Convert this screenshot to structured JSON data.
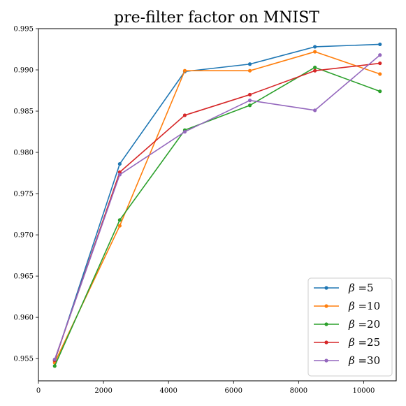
{
  "chart_data": {
    "type": "line",
    "title": "pre-filter factor on MNIST",
    "xlabel": "",
    "ylabel": "",
    "x": [
      500,
      2500,
      4500,
      6500,
      8500,
      10500
    ],
    "xlim": [
      0,
      11000
    ],
    "ylim": [
      0.9523,
      0.995
    ],
    "xticks": [
      0,
      2000,
      4000,
      6000,
      8000,
      10000
    ],
    "xtick_labels": [
      "0",
      "2000",
      "4000",
      "6000",
      "8000",
      "10000"
    ],
    "yticks": [
      0.955,
      0.96,
      0.965,
      0.97,
      0.975,
      0.98,
      0.985,
      0.99,
      0.995
    ],
    "ytick_labels": [
      "0.955",
      "0.960",
      "0.965",
      "0.970",
      "0.975",
      "0.980",
      "0.985",
      "0.990",
      "0.995"
    ],
    "grid": false,
    "legend_position": "bottom-right",
    "series": [
      {
        "name": "β =5",
        "symbol": "β",
        "label": "=5",
        "color": "#1f77b4",
        "values": [
          0.9547,
          0.9786,
          0.9898,
          0.9907,
          0.9928,
          0.9931
        ]
      },
      {
        "name": "β =10",
        "symbol": "β",
        "label": "=10",
        "color": "#ff7f0e",
        "values": [
          0.9545,
          0.9711,
          0.9899,
          0.9899,
          0.9922,
          0.9895
        ]
      },
      {
        "name": "β =20",
        "symbol": "β",
        "label": "=20",
        "color": "#2ca02c",
        "values": [
          0.9541,
          0.9718,
          0.9827,
          0.9857,
          0.9903,
          0.9874
        ]
      },
      {
        "name": "β =25",
        "symbol": "β",
        "label": "=25",
        "color": "#d62728",
        "values": [
          0.9548,
          0.9776,
          0.9845,
          0.987,
          0.9899,
          0.9908
        ]
      },
      {
        "name": "β =30",
        "symbol": "β",
        "label": "=30",
        "color": "#9467bd",
        "values": [
          0.9549,
          0.9773,
          0.9825,
          0.9863,
          0.9851,
          0.9918
        ]
      }
    ]
  }
}
